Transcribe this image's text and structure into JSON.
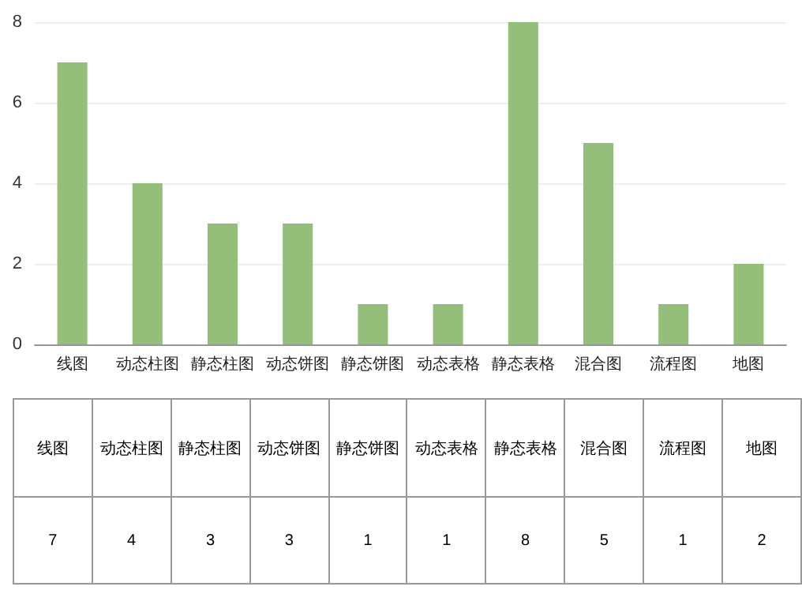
{
  "chart_data": {
    "type": "bar",
    "categories": [
      "线图",
      "动态柱图",
      "静态柱图",
      "动态饼图",
      "静态饼图",
      "动态表格",
      "静态表格",
      "混合图",
      "流程图",
      "地图"
    ],
    "values": [
      7,
      4,
      3,
      3,
      1,
      1,
      8,
      5,
      1,
      2
    ],
    "color": "#93bf7a",
    "ylim": [
      0,
      8
    ],
    "yticks": [
      0,
      2,
      4,
      6,
      8
    ],
    "grid": "y",
    "data_labels": true
  }
}
